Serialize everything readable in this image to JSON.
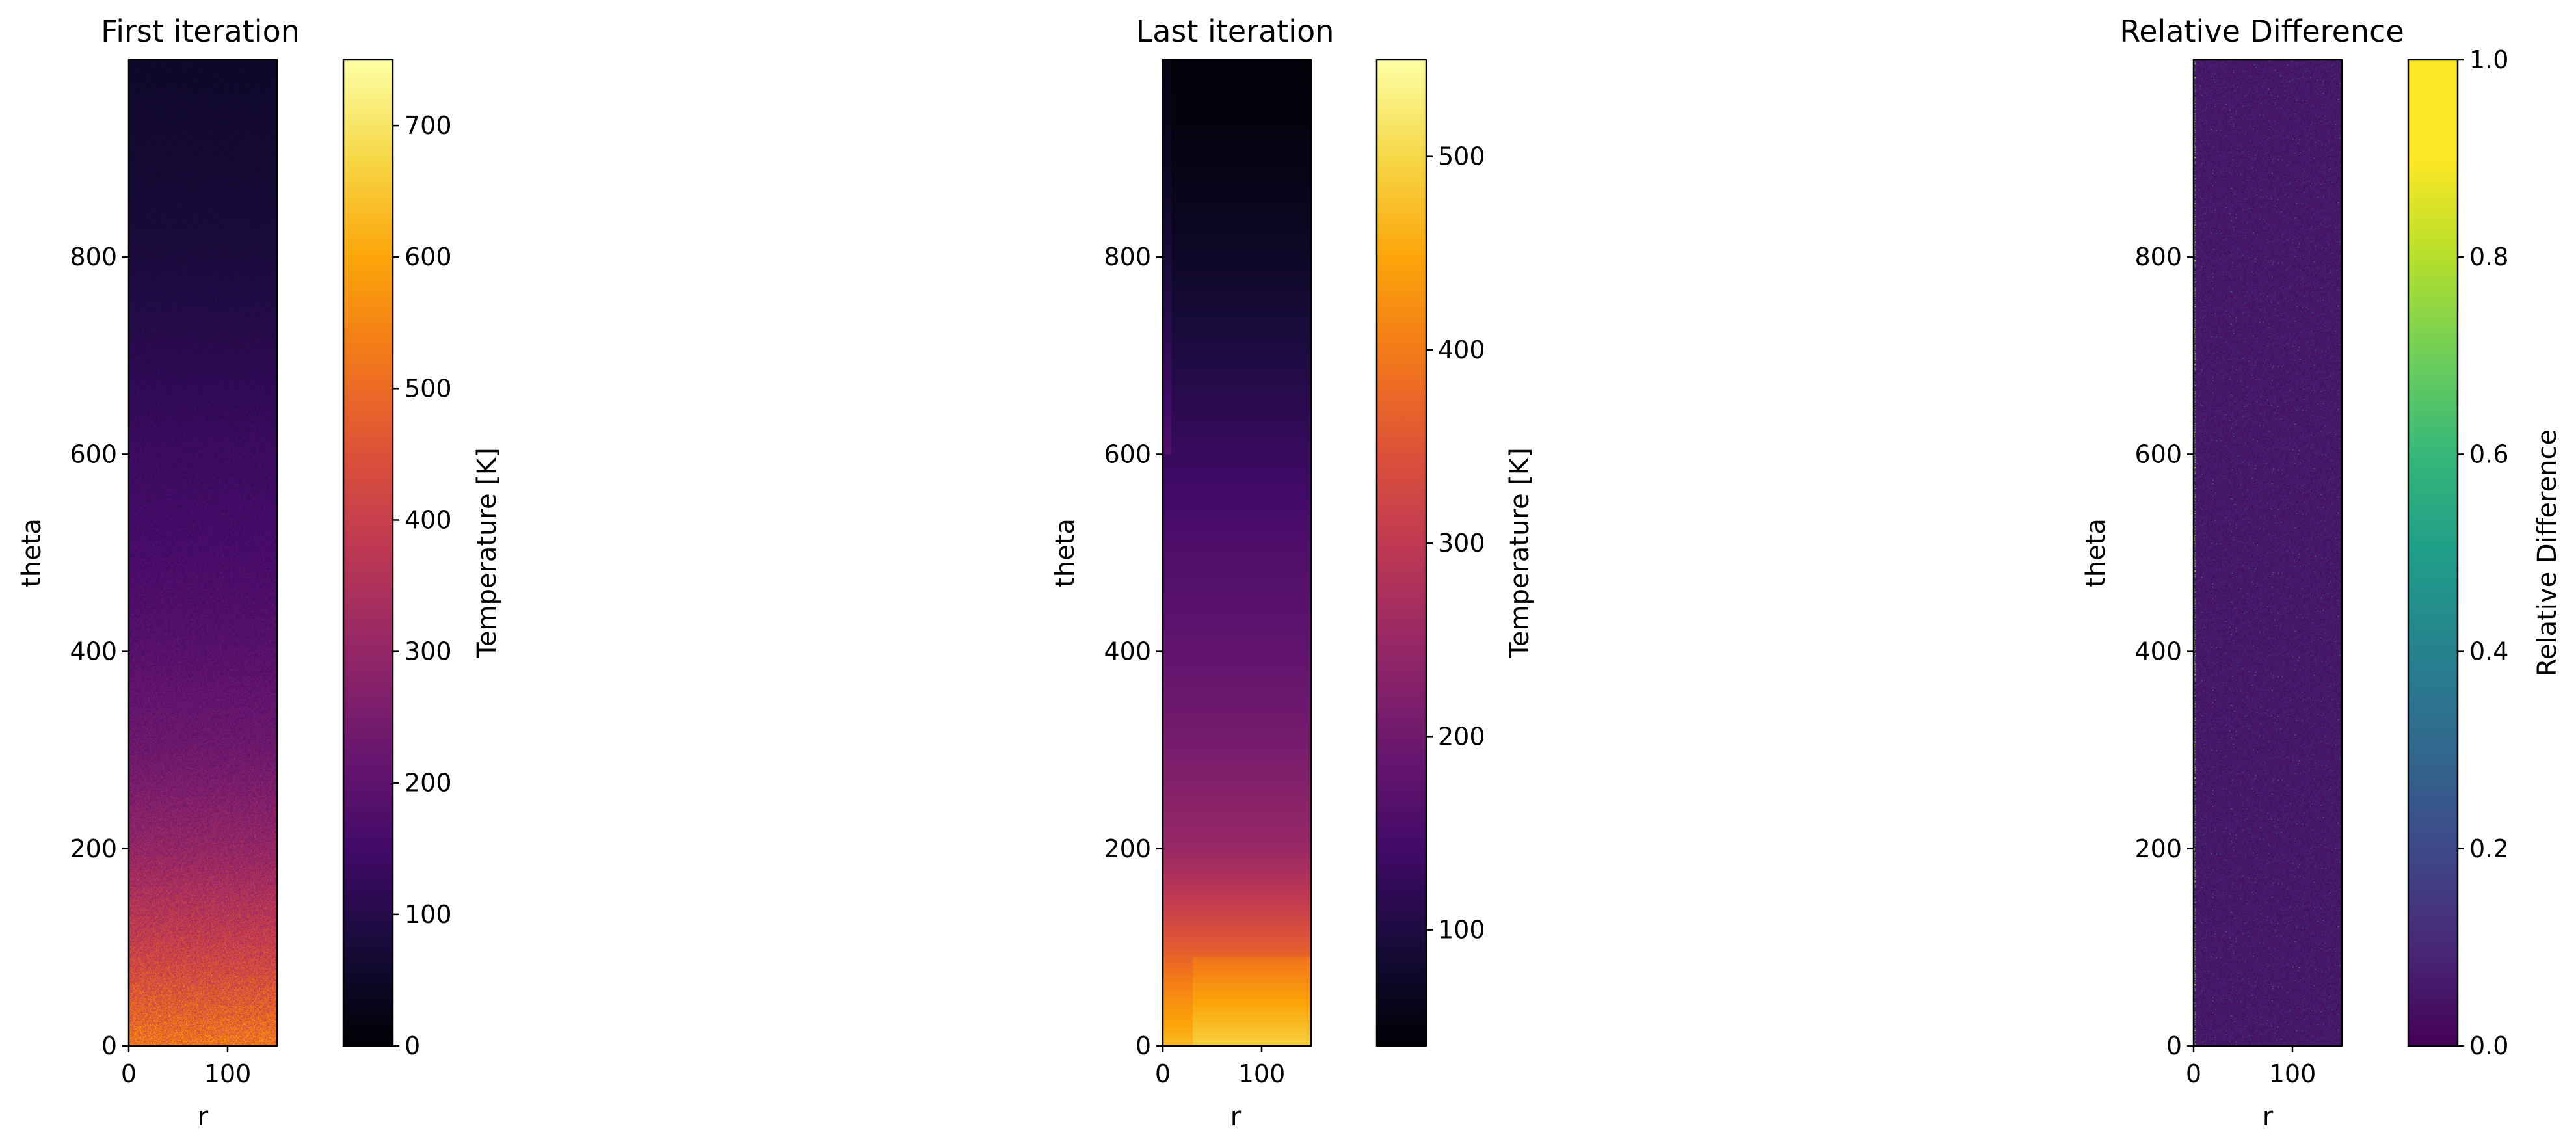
{
  "chart_data": [
    {
      "type": "heatmap",
      "title": "First iteration",
      "xlabel": "r",
      "ylabel": "theta",
      "xlim": [
        0,
        150
      ],
      "ylim": [
        0,
        1000
      ],
      "xticks": [
        "0",
        "100"
      ],
      "yticks": [
        "0",
        "200",
        "400",
        "600",
        "800"
      ],
      "colormap": "inferno",
      "colorbar": {
        "label": "Temperature [K]",
        "range": [
          0,
          750
        ],
        "ticks": [
          "0",
          "100",
          "200",
          "300",
          "400",
          "500",
          "600",
          "700"
        ]
      },
      "field": {
        "description_values": "temperature decreasing with theta, noisy",
        "value_at_theta": [
          [
            0,
            520
          ],
          [
            100,
            400
          ],
          [
            200,
            300
          ],
          [
            300,
            230
          ],
          [
            400,
            190
          ],
          [
            500,
            160
          ],
          [
            600,
            140
          ],
          [
            700,
            110
          ],
          [
            800,
            80
          ],
          [
            1000,
            55
          ]
        ],
        "noise": 0.18
      }
    },
    {
      "type": "heatmap",
      "title": "Last iteration",
      "xlabel": "r",
      "ylabel": "theta",
      "xlim": [
        0,
        150
      ],
      "ylim": [
        0,
        1000
      ],
      "xticks": [
        "0",
        "100"
      ],
      "yticks": [
        "0",
        "200",
        "400",
        "600",
        "800"
      ],
      "colormap": "inferno",
      "colorbar": {
        "label": "Temperature [K]",
        "range": [
          40,
          550
        ],
        "ticks": [
          "100",
          "200",
          "300",
          "400",
          "500"
        ]
      },
      "field": {
        "value_at_theta": [
          [
            0,
            470
          ],
          [
            50,
            420
          ],
          [
            100,
            360
          ],
          [
            150,
            300
          ],
          [
            200,
            250
          ],
          [
            300,
            210
          ],
          [
            400,
            180
          ],
          [
            500,
            160
          ],
          [
            600,
            130
          ],
          [
            700,
            100
          ],
          [
            800,
            75
          ],
          [
            900,
            55
          ],
          [
            1000,
            45
          ]
        ],
        "noise": 0.0
      }
    },
    {
      "type": "heatmap",
      "title": "Relative Difference",
      "xlabel": "r",
      "ylabel": "theta",
      "xlim": [
        0,
        150
      ],
      "ylim": [
        0,
        1000
      ],
      "xticks": [
        "0",
        "100"
      ],
      "yticks": [
        "0",
        "200",
        "400",
        "600",
        "800"
      ],
      "colormap": "viridis",
      "colorbar": {
        "label": "Relative Difference",
        "range": [
          0,
          1
        ],
        "ticks": [
          "0.0",
          "0.2",
          "0.4",
          "0.6",
          "0.8",
          "1.0"
        ]
      },
      "field": {
        "value_at_theta": [
          [
            0,
            0.06
          ],
          [
            1000,
            0.06
          ]
        ],
        "noise": 0.7
      }
    }
  ]
}
